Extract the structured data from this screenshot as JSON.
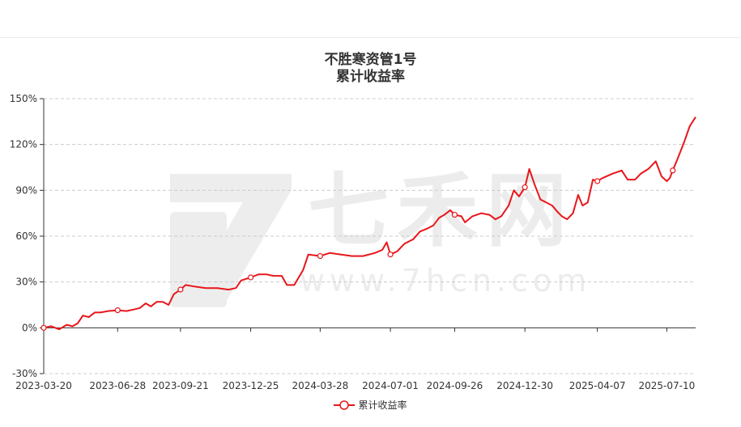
{
  "chart_data": {
    "type": "line",
    "title": "不胜寒资管1号",
    "subtitle": "累计收益率",
    "watermark_text": "七禾网",
    "watermark_url": "www.7hcn.com",
    "ylim": [
      -30,
      150
    ],
    "yticks": [
      "150%",
      "120%",
      "90%",
      "60%",
      "30%",
      "0%",
      "-30%"
    ],
    "ytick_values": [
      150,
      120,
      90,
      60,
      30,
      0,
      -30
    ],
    "xlim": [
      "2023-03-20",
      "2025-08-18"
    ],
    "xtick_labels": [
      "2023-03-20",
      "2023-06-28",
      "2023-09-21",
      "2023-12-25",
      "2024-03-28",
      "2024-07-01",
      "2024-09-26",
      "2024-12-30",
      "2025-04-07",
      "2025-07-10"
    ],
    "grid": true,
    "legend_position": "bottom",
    "colors": {
      "line": "#e8161a",
      "grid": "#cccccc",
      "axis": "#333333",
      "text": "#333333",
      "watermark": "#e9e9e9"
    },
    "series": [
      {
        "name": "累计收益率",
        "points": [
          [
            "2023-03-20",
            0
          ],
          [
            "2023-03-30",
            1
          ],
          [
            "2023-04-10",
            -1
          ],
          [
            "2023-04-20",
            2
          ],
          [
            "2023-04-28",
            1
          ],
          [
            "2023-05-05",
            3
          ],
          [
            "2023-05-12",
            8
          ],
          [
            "2023-05-20",
            7
          ],
          [
            "2023-05-28",
            10
          ],
          [
            "2023-06-05",
            10
          ],
          [
            "2023-06-15",
            11
          ],
          [
            "2023-06-28",
            11.5
          ],
          [
            "2023-07-10",
            11
          ],
          [
            "2023-07-20",
            12
          ],
          [
            "2023-07-28",
            13
          ],
          [
            "2023-08-05",
            16
          ],
          [
            "2023-08-12",
            14
          ],
          [
            "2023-08-20",
            17
          ],
          [
            "2023-08-28",
            17
          ],
          [
            "2023-09-05",
            15
          ],
          [
            "2023-09-12",
            22
          ],
          [
            "2023-09-21",
            25
          ],
          [
            "2023-09-28",
            28
          ],
          [
            "2023-10-10",
            27
          ],
          [
            "2023-10-25",
            26
          ],
          [
            "2023-11-10",
            26
          ],
          [
            "2023-11-25",
            25
          ],
          [
            "2023-12-05",
            26
          ],
          [
            "2023-12-12",
            31
          ],
          [
            "2023-12-25",
            33
          ],
          [
            "2024-01-05",
            35
          ],
          [
            "2024-01-15",
            35
          ],
          [
            "2024-01-25",
            34
          ],
          [
            "2024-02-05",
            34
          ],
          [
            "2024-02-12",
            28
          ],
          [
            "2024-02-22",
            28
          ],
          [
            "2024-03-05",
            38
          ],
          [
            "2024-03-12",
            48
          ],
          [
            "2024-03-28",
            47
          ],
          [
            "2024-04-10",
            49
          ],
          [
            "2024-04-25",
            48
          ],
          [
            "2024-05-10",
            47
          ],
          [
            "2024-05-25",
            47
          ],
          [
            "2024-06-10",
            49
          ],
          [
            "2024-06-20",
            51
          ],
          [
            "2024-06-26",
            56
          ],
          [
            "2024-07-01",
            48
          ],
          [
            "2024-07-10",
            50
          ],
          [
            "2024-07-20",
            55
          ],
          [
            "2024-08-01",
            58
          ],
          [
            "2024-08-10",
            63
          ],
          [
            "2024-08-20",
            65
          ],
          [
            "2024-08-28",
            67
          ],
          [
            "2024-09-05",
            72
          ],
          [
            "2024-09-12",
            74
          ],
          [
            "2024-09-20",
            77
          ],
          [
            "2024-09-26",
            74
          ],
          [
            "2024-10-05",
            73
          ],
          [
            "2024-10-10",
            69
          ],
          [
            "2024-10-20",
            73
          ],
          [
            "2024-11-01",
            75
          ],
          [
            "2024-11-12",
            74
          ],
          [
            "2024-11-20",
            71
          ],
          [
            "2024-11-28",
            73
          ],
          [
            "2024-12-08",
            80
          ],
          [
            "2024-12-15",
            90
          ],
          [
            "2024-12-22",
            86
          ],
          [
            "2024-12-30",
            92
          ],
          [
            "2025-01-05",
            104
          ],
          [
            "2025-01-12",
            94
          ],
          [
            "2025-01-20",
            84
          ],
          [
            "2025-01-28",
            82
          ],
          [
            "2025-02-05",
            80
          ],
          [
            "2025-02-12",
            76
          ],
          [
            "2025-02-18",
            73
          ],
          [
            "2025-02-25",
            71
          ],
          [
            "2025-03-05",
            75
          ],
          [
            "2025-03-12",
            87
          ],
          [
            "2025-03-18",
            80
          ],
          [
            "2025-03-25",
            82
          ],
          [
            "2025-04-01",
            97
          ],
          [
            "2025-04-07",
            96
          ],
          [
            "2025-04-14",
            98
          ],
          [
            "2025-04-28",
            101
          ],
          [
            "2025-05-10",
            103
          ],
          [
            "2025-05-18",
            97
          ],
          [
            "2025-05-28",
            97
          ],
          [
            "2025-06-05",
            101
          ],
          [
            "2025-06-15",
            104
          ],
          [
            "2025-06-25",
            109
          ],
          [
            "2025-07-03",
            99
          ],
          [
            "2025-07-10",
            96
          ],
          [
            "2025-07-14",
            98
          ],
          [
            "2025-07-18",
            103
          ],
          [
            "2025-07-24",
            110
          ],
          [
            "2025-08-02",
            121
          ],
          [
            "2025-08-10",
            132
          ],
          [
            "2025-08-18",
            138
          ]
        ],
        "markers": [
          [
            "2023-03-20",
            0
          ],
          [
            "2023-06-28",
            11.5
          ],
          [
            "2023-09-21",
            25
          ],
          [
            "2023-12-25",
            33
          ],
          [
            "2024-03-28",
            47
          ],
          [
            "2024-07-01",
            48
          ],
          [
            "2024-09-26",
            74
          ],
          [
            "2024-12-30",
            92
          ],
          [
            "2025-04-07",
            96
          ],
          [
            "2025-07-18",
            103
          ]
        ]
      }
    ]
  }
}
